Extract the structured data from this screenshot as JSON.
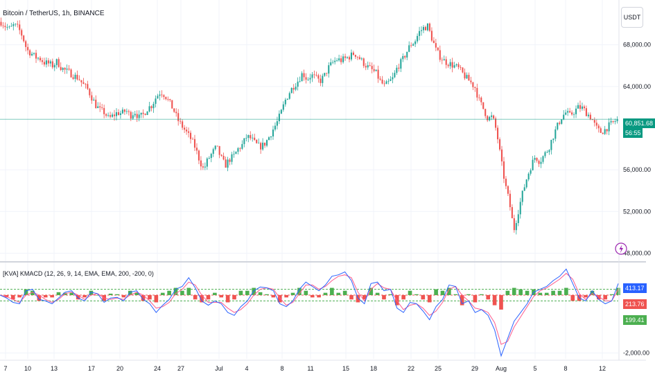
{
  "header": {
    "symbol_title": "Bitcoin / TetherUS, 1h, BINANCE",
    "unit_button": "USDT"
  },
  "price_panel": {
    "last_price": "60,851.68",
    "countdown": "56:55",
    "y_ticks": [
      {
        "value": 68000,
        "label": "68,000.00"
      },
      {
        "value": 64000,
        "label": "64,000.00"
      },
      {
        "value": 56000,
        "label": "56,000.00"
      },
      {
        "value": 52000,
        "label": "52,000.00"
      },
      {
        "value": 48000,
        "label": "48,000.00"
      }
    ]
  },
  "indicator_panel": {
    "title": "[KVA] KMACD (12, 26, 9, 14, EMA, EMA, 200, -200, 0)",
    "tags": [
      "413.17",
      "213.76",
      "199.41"
    ],
    "y_ticks": [
      {
        "value": -2000,
        "label": "-2,000.00"
      }
    ]
  },
  "x_axis": {
    "ticks": [
      "7",
      "10",
      "13",
      "17",
      "20",
      "24",
      "27",
      "Jul",
      "4",
      "8",
      "11",
      "15",
      "18",
      "22",
      "25",
      "29",
      "Aug",
      "5",
      "8",
      "12"
    ]
  },
  "colors": {
    "up": "#26a69a",
    "down": "#ef5350",
    "macd": "#2962ff",
    "signal": "#ff5a8c",
    "hist_up": "#4caf50",
    "hist_down": "#ef5350",
    "level": "#4caf50",
    "last_price": "#089981"
  },
  "chart_data": [
    {
      "type": "candlestick",
      "title": "Bitcoin / TetherUS, 1h, BINANCE",
      "ylim": [
        47300,
        72300
      ],
      "x": [
        "7",
        "10",
        "13",
        "17",
        "20",
        "24",
        "27",
        "Jul",
        "4",
        "8",
        "11",
        "15",
        "18",
        "22",
        "25",
        "29",
        "Aug",
        "5",
        "8",
        "12"
      ],
      "close_path": [
        70200,
        69800,
        69500,
        69900,
        69600,
        68800,
        67500,
        67200,
        66800,
        66700,
        66300,
        66200,
        66000,
        66400,
        65800,
        65500,
        65300,
        65000,
        64800,
        64200,
        63800,
        63000,
        62200,
        61700,
        61500,
        60900,
        61200,
        61500,
        61400,
        61700,
        61200,
        61600,
        61000,
        61300,
        61900,
        62200,
        63000,
        63500,
        63200,
        62500,
        61800,
        60800,
        60200,
        59600,
        59000,
        58200,
        57000,
        56000,
        57000,
        57600,
        58200,
        57200,
        56400,
        57000,
        57300,
        58000,
        58400,
        59200,
        59000,
        58500,
        58200,
        58400,
        59000,
        59800,
        60500,
        61500,
        62700,
        63500,
        64100,
        64600,
        65300,
        64700,
        65100,
        64800,
        64500,
        65000,
        65800,
        66300,
        66600,
        66500,
        66700,
        66900,
        67200,
        66800,
        66300,
        65900,
        65600,
        65300,
        64500,
        64000,
        64400,
        64800,
        65900,
        66400,
        67200,
        68000,
        68300,
        69200,
        69600,
        69800,
        68600,
        67400,
        66800,
        66400,
        66200,
        66000,
        65800,
        65300,
        64800,
        64400,
        63900,
        62600,
        61800,
        60900,
        61100,
        59700,
        57000,
        54600,
        52800,
        50200,
        52000,
        53700,
        55200,
        56400,
        57300,
        56800,
        57400,
        58000,
        59100,
        60100,
        61000,
        61500,
        61200,
        61600,
        62000,
        61900,
        61400,
        61000,
        60100,
        59600,
        59800,
        60200,
        60500,
        60851.68
      ],
      "last_price": 60851.68
    },
    {
      "type": "line",
      "title": "[KVA] KMACD (12, 26, 9, 14, EMA, EMA, 200, -200, 0)",
      "ylim": [
        -2200,
        1100
      ],
      "levels": [
        200,
        0,
        -200
      ],
      "series": [
        {
          "values": [
            0,
            -100,
            -250,
            -300,
            150,
            200,
            -150,
            -200,
            -300,
            -100,
            100,
            150,
            -100,
            -200,
            100,
            50,
            -250,
            -100,
            -80,
            -200,
            100,
            150,
            -150,
            -300,
            -600,
            -350,
            -150,
            200,
            300,
            600,
            250,
            -200,
            -350,
            -200,
            -300,
            -600,
            -700,
            -400,
            -200,
            150,
            280,
            250,
            150,
            -300,
            -400,
            -200,
            200,
            450,
            300,
            150,
            350,
            650,
            700,
            800,
            500,
            -100,
            -300,
            400,
            450,
            150,
            200,
            -450,
            -600,
            -250,
            -300,
            -550,
            -850,
            -400,
            -150,
            350,
            300,
            -300,
            -200,
            -600,
            -500,
            -700,
            -1200,
            -2100,
            -1500,
            -900,
            -600,
            -300,
            100,
            200,
            300,
            500,
            650,
            900,
            400,
            -100,
            -200,
            150,
            -150,
            -300,
            -200,
            400
          ]
        },
        {
          "values": [
            0,
            -50,
            -150,
            -250,
            0,
            100,
            0,
            -150,
            -250,
            -150,
            50,
            100,
            0,
            -150,
            0,
            50,
            -100,
            -150,
            -100,
            -150,
            0,
            100,
            0,
            -200,
            -450,
            -400,
            -250,
            50,
            200,
            450,
            350,
            0,
            -250,
            -250,
            -250,
            -450,
            -600,
            -500,
            -300,
            0,
            200,
            250,
            200,
            -100,
            -350,
            -250,
            50,
            350,
            350,
            200,
            300,
            500,
            650,
            700,
            600,
            100,
            -200,
            200,
            400,
            250,
            200,
            -200,
            -500,
            -350,
            -300,
            -450,
            -700,
            -550,
            -250,
            200,
            300,
            0,
            -200,
            -450,
            -500,
            -600,
            -950,
            -1700,
            -1600,
            -1100,
            -750,
            -400,
            -50,
            150,
            250,
            400,
            550,
            750,
            550,
            50,
            -150,
            50,
            -50,
            -200,
            -200,
            200
          ]
        },
        {
          "values": [
            0,
            -80,
            -150,
            -80,
            200,
            150,
            -200,
            -80,
            -80,
            100,
            80,
            80,
            -150,
            -80,
            150,
            0,
            -200,
            50,
            30,
            -80,
            150,
            80,
            -200,
            -150,
            -250,
            80,
            150,
            250,
            150,
            250,
            -150,
            -250,
            -150,
            80,
            -80,
            -250,
            -150,
            150,
            150,
            250,
            100,
            30,
            -80,
            -250,
            -80,
            80,
            250,
            150,
            -80,
            -80,
            80,
            250,
            80,
            150,
            -150,
            -250,
            -150,
            250,
            80,
            -150,
            30,
            -350,
            -150,
            150,
            30,
            -150,
            -250,
            200,
            150,
            250,
            30,
            -350,
            30,
            -250,
            30,
            -150,
            -350,
            -500,
            150,
            250,
            200,
            150,
            200,
            80,
            80,
            150,
            150,
            250,
            -200,
            -200,
            -80,
            150,
            -150,
            -150,
            30,
            250
          ]
        }
      ]
    }
  ]
}
